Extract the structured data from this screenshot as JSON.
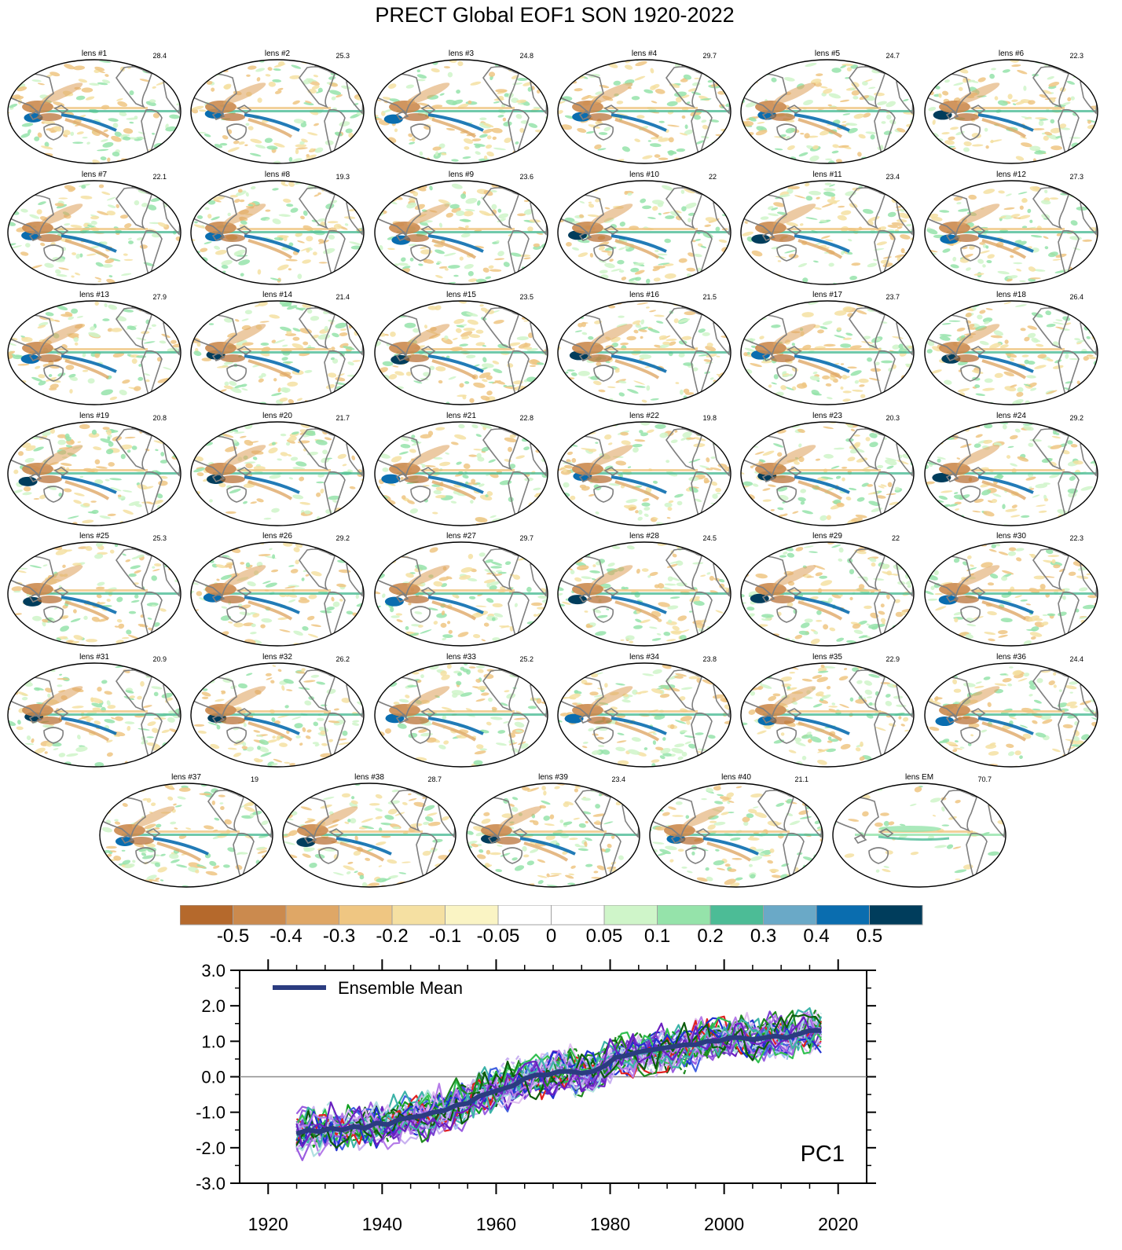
{
  "title": "PRECT Global EOF1 SON 1920-2022",
  "panels": [
    {
      "label": "lens #1",
      "pct": "28.4"
    },
    {
      "label": "lens #2",
      "pct": "25.3"
    },
    {
      "label": "lens #3",
      "pct": "24.8"
    },
    {
      "label": "lens #4",
      "pct": "29.7"
    },
    {
      "label": "lens #5",
      "pct": "24.7"
    },
    {
      "label": "lens #6",
      "pct": "22.3"
    },
    {
      "label": "lens #7",
      "pct": "22.1"
    },
    {
      "label": "lens #8",
      "pct": "19.3"
    },
    {
      "label": "lens #9",
      "pct": "23.6"
    },
    {
      "label": "lens #10",
      "pct": "22"
    },
    {
      "label": "lens #11",
      "pct": "23.4"
    },
    {
      "label": "lens #12",
      "pct": "27.3"
    },
    {
      "label": "lens #13",
      "pct": "27.9"
    },
    {
      "label": "lens #14",
      "pct": "21.4"
    },
    {
      "label": "lens #15",
      "pct": "23.5"
    },
    {
      "label": "lens #16",
      "pct": "21.5"
    },
    {
      "label": "lens #17",
      "pct": "23.7"
    },
    {
      "label": "lens #18",
      "pct": "26.4"
    },
    {
      "label": "lens #19",
      "pct": "20.8"
    },
    {
      "label": "lens #20",
      "pct": "21.7"
    },
    {
      "label": "lens #21",
      "pct": "22.8"
    },
    {
      "label": "lens #22",
      "pct": "19.8"
    },
    {
      "label": "lens #23",
      "pct": "20.3"
    },
    {
      "label": "lens #24",
      "pct": "29.2"
    },
    {
      "label": "lens #25",
      "pct": "25.3"
    },
    {
      "label": "lens #26",
      "pct": "29.2"
    },
    {
      "label": "lens #27",
      "pct": "29.7"
    },
    {
      "label": "lens #28",
      "pct": "24.5"
    },
    {
      "label": "lens #29",
      "pct": "22"
    },
    {
      "label": "lens #30",
      "pct": "22.3"
    },
    {
      "label": "lens #31",
      "pct": "20.9"
    },
    {
      "label": "lens #32",
      "pct": "26.2"
    },
    {
      "label": "lens #33",
      "pct": "25.2"
    },
    {
      "label": "lens #34",
      "pct": "23.8"
    },
    {
      "label": "lens #35",
      "pct": "22.9"
    },
    {
      "label": "lens #36",
      "pct": "24.4"
    },
    {
      "label": "lens #37",
      "pct": "19"
    },
    {
      "label": "lens #38",
      "pct": "28.7"
    },
    {
      "label": "lens #39",
      "pct": "23.4"
    },
    {
      "label": "lens #40",
      "pct": "21.1"
    },
    {
      "label": "lens EM",
      "pct": "70.7"
    }
  ],
  "colorbar": {
    "colors": [
      "#b5692c",
      "#cb8a4e",
      "#dfa766",
      "#efc682",
      "#f5e0a2",
      "#faf4c4",
      "#ffffff",
      "#ffffff",
      "#cff5c9",
      "#95e3aa",
      "#4cbc96",
      "#6aa9c7",
      "#0a6daf",
      "#003d5c"
    ],
    "labels": [
      "-0.5",
      "-0.4",
      "-0.3",
      "-0.2",
      "-0.1",
      "-0.05",
      "0",
      "0.05",
      "0.1",
      "0.2",
      "0.3",
      "0.4",
      "0.5"
    ]
  },
  "chart_data": {
    "type": "line",
    "label": "PC1",
    "legend": "Ensemble Mean",
    "xlim": [
      1915,
      2025
    ],
    "ylim": [
      -3.0,
      3.0
    ],
    "xticks": [
      1920,
      1940,
      1960,
      1980,
      2000,
      2020
    ],
    "yticks": [
      "-3.0",
      "-2.0",
      "-1.0",
      "0.0",
      "1.0",
      "2.0",
      "3.0"
    ],
    "member_years": [
      1925,
      2017
    ],
    "member_count": 40,
    "member_colors": [
      "#9a5de0",
      "#1f8a1f",
      "#2030d0",
      "#b57be8",
      "#3cb3a8",
      "#0c5c0c",
      "#c8b0f0",
      "#6a20c0",
      "#10a020",
      "#4060e0",
      "#b0e0e0",
      "#e0c0f0",
      "#e02020",
      "#7a40d0",
      "#30c050",
      "#a0c0f0"
    ],
    "series": [
      {
        "name": "Ensemble Mean",
        "x": [
          1925,
          1927,
          1929,
          1931,
          1933,
          1935,
          1937,
          1939,
          1941,
          1943,
          1945,
          1947,
          1949,
          1951,
          1953,
          1955,
          1957,
          1959,
          1961,
          1963,
          1965,
          1967,
          1969,
          1971,
          1973,
          1975,
          1977,
          1979,
          1981,
          1983,
          1985,
          1987,
          1989,
          1991,
          1993,
          1995,
          1997,
          1999,
          2001,
          2003,
          2005,
          2007,
          2009,
          2011,
          2013,
          2015,
          2017
        ],
        "y": [
          -1.6,
          -1.5,
          -1.55,
          -1.45,
          -1.5,
          -1.4,
          -1.45,
          -1.3,
          -1.35,
          -1.2,
          -1.15,
          -1.1,
          -1.0,
          -0.95,
          -0.8,
          -0.75,
          -0.55,
          -0.45,
          -0.35,
          -0.25,
          -0.05,
          0.05,
          0.05,
          0.15,
          0.15,
          0.1,
          0.15,
          0.3,
          0.55,
          0.6,
          0.7,
          0.75,
          0.8,
          0.85,
          0.9,
          0.9,
          1.0,
          1.0,
          1.1,
          1.1,
          1.05,
          1.1,
          1.15,
          1.1,
          1.2,
          1.3,
          1.3
        ]
      }
    ]
  }
}
